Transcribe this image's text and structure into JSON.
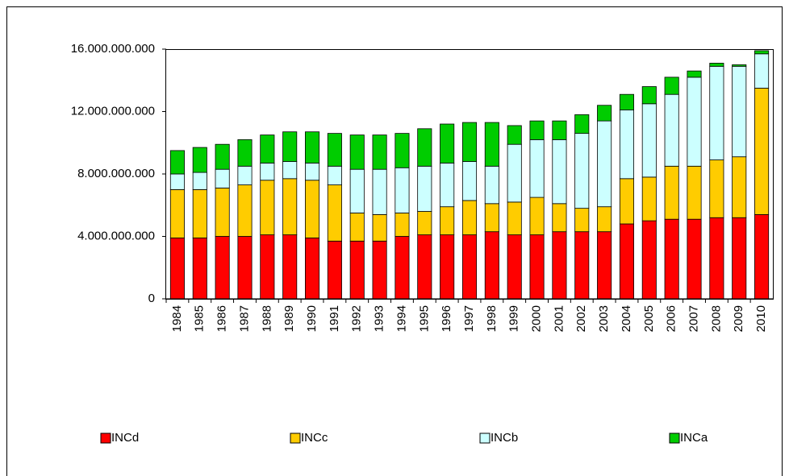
{
  "chart_data": {
    "type": "stacked_bar",
    "categories": [
      "1984",
      "1985",
      "1986",
      "1987",
      "1988",
      "1989",
      "1990",
      "1991",
      "1992",
      "1993",
      "1994",
      "1995",
      "1996",
      "1997",
      "1998",
      "1999",
      "2000",
      "2001",
      "2002",
      "2003",
      "2004",
      "2005",
      "2006",
      "2007",
      "2008",
      "2009",
      "2010"
    ],
    "series": [
      {
        "name": "INCd",
        "color": "#ff0000",
        "values": [
          3900000000,
          3900000000,
          4000000000,
          4000000000,
          4100000000,
          4100000000,
          3900000000,
          3700000000,
          3700000000,
          3700000000,
          4000000000,
          4100000000,
          4100000000,
          4100000000,
          4300000000,
          4100000000,
          4100000000,
          4300000000,
          4300000000,
          4300000000,
          4800000000,
          5000000000,
          5100000000,
          5100000000,
          5200000000,
          5200000000,
          5400000000
        ]
      },
      {
        "name": "INCc",
        "color": "#ffcc00",
        "values": [
          3100000000,
          3100000000,
          3100000000,
          3300000000,
          3500000000,
          3600000000,
          3700000000,
          3600000000,
          1800000000,
          1700000000,
          1500000000,
          1500000000,
          1800000000,
          2200000000,
          1800000000,
          2100000000,
          2400000000,
          1800000000,
          1500000000,
          1600000000,
          2900000000,
          2800000000,
          3400000000,
          3400000000,
          3700000000,
          3900000000,
          8100000000
        ]
      },
      {
        "name": "INCb",
        "color": "#ccffff",
        "values": [
          1000000000,
          1100000000,
          1200000000,
          1200000000,
          1100000000,
          1100000000,
          1100000000,
          1200000000,
          2800000000,
          2900000000,
          2900000000,
          2900000000,
          2800000000,
          2500000000,
          2400000000,
          3700000000,
          3700000000,
          4100000000,
          4800000000,
          5500000000,
          4400000000,
          4700000000,
          4600000000,
          5700000000,
          6000000000,
          5800000000,
          2200000000
        ]
      },
      {
        "name": "INCa",
        "color": "#00cc00",
        "values": [
          1500000000,
          1600000000,
          1600000000,
          1700000000,
          1800000000,
          1900000000,
          2000000000,
          2100000000,
          2200000000,
          2200000000,
          2200000000,
          2400000000,
          2500000000,
          2500000000,
          2800000000,
          1200000000,
          1200000000,
          1200000000,
          1200000000,
          1000000000,
          1000000000,
          1100000000,
          1100000000,
          400000000,
          200000000,
          100000000,
          200000000
        ]
      }
    ],
    "ylim": [
      0,
      16000000000
    ],
    "yticks": [
      0,
      {
        "value": 4000000000,
        "label": "4.000.000.000"
      },
      {
        "value": 8000000000,
        "label": "8.000.000.000"
      },
      {
        "value": 12000000000,
        "label": "12.000.000.000"
      },
      {
        "value": 16000000000,
        "label": "16.000.000.000"
      }
    ],
    "legend": "bottom"
  }
}
